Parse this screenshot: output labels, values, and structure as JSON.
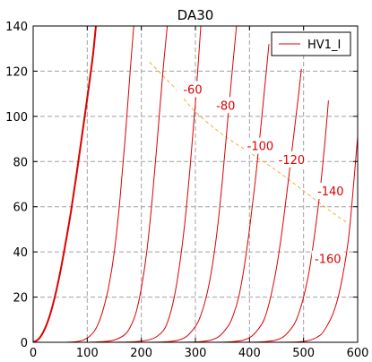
{
  "chart_data": {
    "type": "line",
    "title": "DA30",
    "xlabel": "",
    "ylabel": "",
    "xlim": [
      0,
      600
    ],
    "ylim": [
      0,
      140
    ],
    "xticks": [
      0,
      100,
      200,
      300,
      400,
      500,
      600
    ],
    "yticks": [
      0,
      20,
      40,
      60,
      80,
      100,
      120,
      140
    ],
    "grid": true,
    "grid_style": "dashed",
    "legend": {
      "position": "top-right",
      "entries": [
        "HV1_I"
      ]
    },
    "colors": {
      "curves": "#dd0000",
      "load_line": "#f0b040",
      "grid": "#a0a0a0"
    },
    "load_line": {
      "x": [
        215,
        260,
        300,
        350,
        400,
        450,
        500,
        550,
        580
      ],
      "y": [
        124,
        113,
        102,
        92,
        84,
        76,
        67,
        58,
        53
      ]
    },
    "series": [
      {
        "name": "HV1_I",
        "x": [
          0,
          10,
          20,
          30,
          40,
          50,
          60,
          70,
          80,
          90,
          100,
          110,
          116
        ],
        "y": [
          0,
          1.4,
          5.2,
          11.3,
          20,
          31,
          44,
          58,
          74,
          91,
          108,
          126,
          140
        ]
      },
      {
        "x": [
          60,
          80,
          95,
          110,
          120,
          130,
          140,
          150,
          160,
          170,
          180,
          186
        ],
        "y": [
          0,
          0.3,
          1.2,
          4,
          8,
          15,
          25,
          40,
          62,
          90,
          122,
          140
        ]
      },
      {
        "x": [
          100,
          130,
          150,
          170,
          180,
          190,
          200,
          210,
          220,
          230,
          240,
          248
        ],
        "y": [
          0,
          0.3,
          1,
          3.5,
          7,
          13,
          24,
          40,
          63,
          91,
          120,
          140
        ]
      },
      {
        "x": [
          150,
          190,
          220,
          240,
          250,
          260,
          270,
          280,
          290,
          300,
          310
        ],
        "y": [
          0,
          0.3,
          1.5,
          5,
          10,
          19,
          33,
          52,
          77,
          106,
          140
        ]
      },
      {
        "x": [
          200,
          250,
          280,
          300,
          310,
          320,
          330,
          340,
          350,
          360,
          370,
          376
        ],
        "y": [
          0,
          0.3,
          2,
          7,
          12,
          20,
          32,
          49,
          72,
          99,
          125,
          140
        ]
      },
      {
        "x": [
          260,
          310,
          340,
          360,
          370,
          380,
          390,
          400,
          410,
          420,
          436
        ],
        "y": [
          0,
          0.3,
          2,
          7,
          12,
          20,
          33,
          50,
          70,
          93,
          132
        ]
      },
      {
        "x": [
          320,
          370,
          400,
          420,
          430,
          440,
          450,
          460,
          470,
          480,
          490,
          496
        ],
        "y": [
          0,
          0.3,
          2,
          7,
          12,
          21,
          33,
          49,
          68,
          88,
          108,
          121
        ]
      },
      {
        "x": [
          380,
          430,
          460,
          480,
          490,
          500,
          510,
          520,
          530,
          540,
          546
        ],
        "y": [
          0,
          0.3,
          2,
          7,
          12,
          20,
          31,
          47,
          66,
          90,
          107
        ]
      },
      {
        "x": [
          440,
          500,
          530,
          545,
          555,
          565,
          575,
          585,
          600
        ],
        "y": [
          0,
          0.4,
          3,
          8,
          13,
          21,
          33,
          50,
          91
        ]
      }
    ],
    "annotations": [
      {
        "text": "-60",
        "x": 295,
        "y": 112
      },
      {
        "text": "-80",
        "x": 356,
        "y": 105
      },
      {
        "text": "-100",
        "x": 420,
        "y": 87
      },
      {
        "text": "-120",
        "x": 478,
        "y": 81
      },
      {
        "text": "-140",
        "x": 550,
        "y": 67
      },
      {
        "text": "-160",
        "x": 545,
        "y": 37
      }
    ]
  }
}
